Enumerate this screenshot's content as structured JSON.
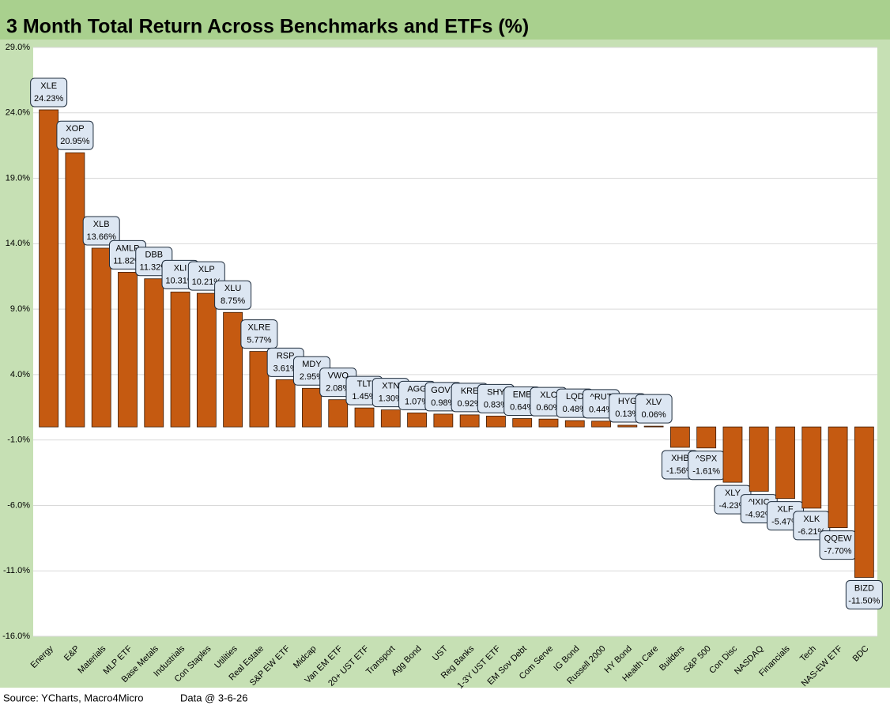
{
  "chart_data": {
    "type": "bar",
    "title": "3 Month Total Return Across Benchmarks and ETFs (%)",
    "source": "Source: YCharts, Macro4Micro",
    "data_note": "Data @ 3-6-26",
    "categories": [
      "Energy",
      "E&P",
      "Materials",
      "MLP ETF",
      "Base Metals",
      "Industrials",
      "Con Staples",
      "Utilities",
      "Real Estate",
      "S&P EW ETF",
      "Midcap",
      "Van EM ETF",
      "20+ UST ETF",
      "Transport",
      "Agg Bond",
      "UST",
      "Reg Banks",
      "1-3Y UST ETF",
      "EM Sov Debt",
      "Com Serve",
      "IG Bond",
      "Russell 2000",
      "HY Bond",
      "Health Care",
      "Builders",
      "S&P 500",
      "Con Disc",
      "NASDAQ",
      "Financials",
      "Tech",
      "NAS-EW ETF",
      "BDC"
    ],
    "tickers": [
      "XLE",
      "XOP",
      "XLB",
      "AMLP",
      "DBB",
      "XLI",
      "XLP",
      "XLU",
      "XLRE",
      "RSP",
      "MDY",
      "VWO",
      "TLT",
      "XTN",
      "AGG",
      "GOVT",
      "KRE",
      "SHY",
      "EMB",
      "XLC",
      "LQD",
      "^RUT",
      "HYG",
      "XLV",
      "XHB",
      "^SPX",
      "XLY",
      "^IXIC",
      "XLF",
      "XLK",
      "QQEW",
      "BIZD"
    ],
    "values": [
      24.23,
      20.95,
      13.66,
      11.82,
      11.32,
      10.31,
      10.21,
      8.75,
      5.77,
      3.61,
      2.95,
      2.08,
      1.45,
      1.3,
      1.07,
      0.98,
      0.92,
      0.83,
      0.64,
      0.6,
      0.48,
      0.44,
      0.13,
      0.06,
      -1.56,
      -1.61,
      -4.23,
      -4.92,
      -5.47,
      -6.21,
      -7.7,
      -11.5
    ],
    "value_labels": [
      "24.23%",
      "20.95%",
      "13.66%",
      "11.82%",
      "11.32%",
      "10.31%",
      "10.21%",
      "8.75%",
      "5.77%",
      "3.61%",
      "2.95%",
      "2.08%",
      "1.45%",
      "1.30%",
      "1.07%",
      "0.98%",
      "0.92%",
      "0.83%",
      "0.64%",
      "0.60%",
      "0.48%",
      "0.44%",
      "0.13%",
      "0.06%",
      "-1.56%",
      "-1.61%",
      "-4.23%",
      "-4.92%",
      "-5.47%",
      "-6.21%",
      "-7.70%",
      "-11.50%"
    ],
    "color": "#c55a11",
    "ylim": [
      -16,
      29
    ],
    "yticks": [
      {
        "value": -16,
        "label": "-16.0%"
      },
      {
        "value": -11,
        "label": "-11.0%"
      },
      {
        "value": -6,
        "label": "-6.0%"
      },
      {
        "value": -1,
        "label": "-1.0%"
      },
      {
        "value": 4,
        "label": "4.0%"
      },
      {
        "value": 9,
        "label": "9.0%"
      },
      {
        "value": 14,
        "label": "14.0%"
      },
      {
        "value": 19,
        "label": "19.0%"
      },
      {
        "value": 24,
        "label": "24.0%"
      },
      {
        "value": 29,
        "label": "29.0%"
      }
    ],
    "grid": true
  }
}
